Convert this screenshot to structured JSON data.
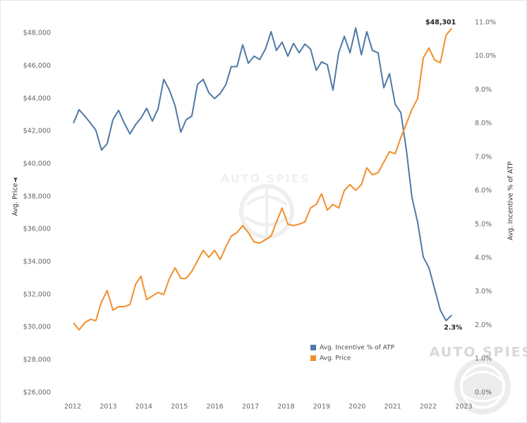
{
  "chart_data": {
    "type": "line",
    "y_label": "Avg. Price",
    "y2_label": "Avg. Incentive % of ATP",
    "watermark": "AUTO SPIES",
    "legend": "lower-center",
    "grid": false,
    "xlim": [
      2011.84,
      2023.21
    ],
    "xticks": [
      2012,
      2013,
      2014,
      2015,
      2016,
      2017,
      2018,
      2019,
      2020,
      2021,
      2022,
      2023
    ],
    "ylim": [
      25650,
      49600
    ],
    "yticks": [
      {
        "value": 26000,
        "label": "$26,000"
      },
      {
        "value": 28000,
        "label": "$28,000"
      },
      {
        "value": 30000,
        "label": "$30,000"
      },
      {
        "value": 32000,
        "label": "$32,000"
      },
      {
        "value": 34000,
        "label": "$34,000"
      },
      {
        "value": 36000,
        "label": "$36,000"
      },
      {
        "value": 38000,
        "label": "$38,000"
      },
      {
        "value": 40000,
        "label": "$40,000"
      },
      {
        "value": 42000,
        "label": "$42,000"
      },
      {
        "value": 44000,
        "label": "$44,000"
      },
      {
        "value": 46000,
        "label": "$46,000"
      },
      {
        "value": 48000,
        "label": "$48,000"
      }
    ],
    "y2lim": [
      -0.17,
      11.46
    ],
    "y2ticks": [
      {
        "value": 0,
        "label": "0.0%"
      },
      {
        "value": 1,
        "label": "1.0%"
      },
      {
        "value": 2,
        "label": "2.0%"
      },
      {
        "value": 3,
        "label": "3.0%"
      },
      {
        "value": 4,
        "label": "4.0%"
      },
      {
        "value": 5,
        "label": "5.0%"
      },
      {
        "value": 6,
        "label": "6.0%"
      },
      {
        "value": 7,
        "label": "7.0%"
      },
      {
        "value": 8,
        "label": "8.0%"
      },
      {
        "value": 9,
        "label": "9.0%"
      },
      {
        "value": 10,
        "label": "10.0%"
      },
      {
        "value": 11,
        "label": "11.0%"
      }
    ],
    "x": [
      2012.02,
      2012.18,
      2012.34,
      2012.5,
      2012.65,
      2012.81,
      2012.97,
      2013.13,
      2013.29,
      2013.45,
      2013.61,
      2013.77,
      2013.92,
      2014.08,
      2014.24,
      2014.4,
      2014.56,
      2014.72,
      2014.88,
      2015.04,
      2015.19,
      2015.35,
      2015.51,
      2015.67,
      2015.83,
      2015.99,
      2016.15,
      2016.31,
      2016.46,
      2016.62,
      2016.78,
      2016.94,
      2017.1,
      2017.26,
      2017.42,
      2017.58,
      2017.73,
      2017.89,
      2018.05,
      2018.21,
      2018.37,
      2018.53,
      2018.69,
      2018.85,
      2019.0,
      2019.16,
      2019.32,
      2019.48,
      2019.64,
      2019.8,
      2019.96,
      2020.12,
      2020.27,
      2020.43,
      2020.59,
      2020.75,
      2020.91,
      2021.07,
      2021.23,
      2021.39,
      2021.54,
      2021.7,
      2021.86,
      2022.02,
      2022.18,
      2022.34,
      2022.5,
      2022.66
    ],
    "series": [
      {
        "name": "Avg. Incentive % of ATP",
        "color": "#4e79a7",
        "axis": "y2",
        "values": [
          8.01,
          8.41,
          8.22,
          8.01,
          7.8,
          7.21,
          7.4,
          8.11,
          8.39,
          8.01,
          7.69,
          7.97,
          8.16,
          8.45,
          8.07,
          8.43,
          9.31,
          8.99,
          8.53,
          7.74,
          8.11,
          8.22,
          9.16,
          9.31,
          8.91,
          8.74,
          8.89,
          9.16,
          9.69,
          9.69,
          10.34,
          9.79,
          10.0,
          9.9,
          10.21,
          10.73,
          10.17,
          10.42,
          10.0,
          10.38,
          10.1,
          10.36,
          10.21,
          9.58,
          9.83,
          9.75,
          8.99,
          10.1,
          10.59,
          10.1,
          10.84,
          10.04,
          10.73,
          10.17,
          10.1,
          9.06,
          9.48,
          8.57,
          8.32,
          7.17,
          5.81,
          5.07,
          4.03,
          3.71,
          3.08,
          2.45,
          2.14,
          2.3
        ],
        "value_labels": [
          null,
          null,
          null,
          null,
          null,
          null,
          null,
          null,
          null,
          null,
          null,
          null,
          null,
          null,
          null,
          null,
          null,
          null,
          null,
          null,
          null,
          null,
          null,
          null,
          null,
          null,
          null,
          null,
          null,
          null,
          null,
          null,
          null,
          null,
          null,
          null,
          null,
          null,
          null,
          null,
          null,
          null,
          null,
          null,
          null,
          null,
          null,
          null,
          null,
          null,
          null,
          null,
          null,
          null,
          null,
          null,
          null,
          null,
          null,
          null,
          null,
          null,
          null,
          null,
          null,
          null,
          null,
          "2.3%"
        ]
      },
      {
        "name": "Avg. Price",
        "color": "#f28e2b",
        "axis": "y",
        "values": [
          30270,
          29840,
          30270,
          30490,
          30400,
          31560,
          32250,
          31050,
          31260,
          31260,
          31390,
          32640,
          33120,
          31690,
          31910,
          32130,
          32000,
          32990,
          33640,
          32990,
          32990,
          33420,
          34070,
          34710,
          34280,
          34710,
          34150,
          34930,
          35580,
          35790,
          36220,
          35790,
          35230,
          35150,
          35360,
          35580,
          36440,
          37300,
          36310,
          36220,
          36310,
          36440,
          37300,
          37520,
          38170,
          37170,
          37520,
          37300,
          38380,
          38730,
          38380,
          38730,
          39760,
          39330,
          39460,
          40110,
          40750,
          40620,
          41620,
          42480,
          43340,
          43990,
          46490,
          47090,
          46360,
          46190,
          47870,
          48301
        ],
        "value_labels": [
          null,
          null,
          null,
          null,
          null,
          null,
          null,
          null,
          null,
          null,
          null,
          null,
          null,
          null,
          null,
          null,
          null,
          null,
          null,
          null,
          null,
          null,
          null,
          null,
          null,
          null,
          null,
          null,
          null,
          null,
          null,
          null,
          null,
          null,
          null,
          null,
          null,
          null,
          null,
          null,
          null,
          null,
          null,
          null,
          null,
          null,
          null,
          null,
          null,
          null,
          null,
          null,
          null,
          null,
          null,
          null,
          null,
          null,
          null,
          null,
          null,
          null,
          null,
          null,
          null,
          null,
          null,
          "$48,301"
        ]
      }
    ]
  }
}
